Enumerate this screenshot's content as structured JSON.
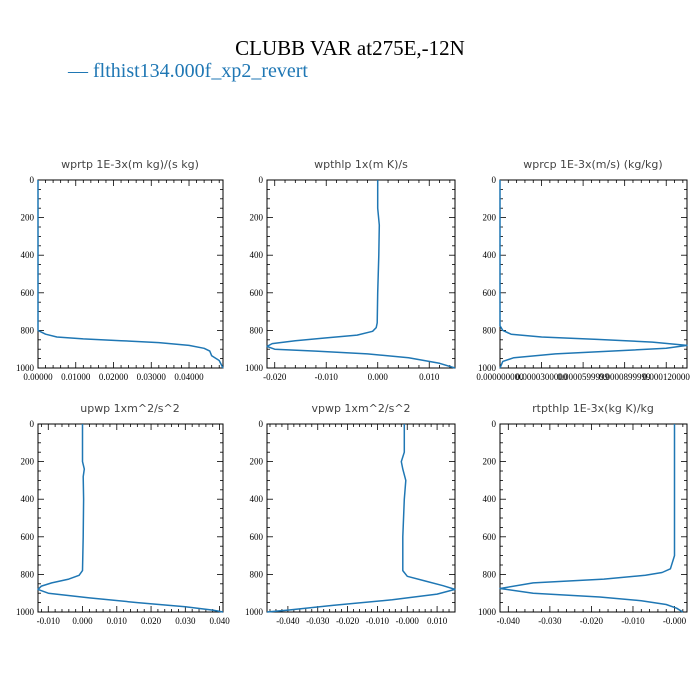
{
  "title": "CLUBB VAR at275E,-12N",
  "legend": {
    "dash": "—",
    "label": "flthist134.000f_xp2_revert",
    "color": "#1f77b4"
  },
  "chart_data": [
    {
      "type": "line",
      "title": "wprtp  1E-3x(m kg)/(s kg)",
      "xlim": [
        0,
        0.049
      ],
      "ylim": [
        1000,
        0
      ],
      "xticks": [
        0,
        0.01,
        0.02,
        0.03,
        0.04
      ],
      "xtick_labels": [
        "0.00000",
        "0.01000",
        "0.02000",
        "0.03000",
        "0.04000"
      ],
      "yticks": [
        0,
        200,
        400,
        600,
        800,
        1000
      ],
      "series": [
        {
          "color": "#1f77b4",
          "x": [
            0,
            0,
            0,
            0.002,
            0.005,
            0.012,
            0.022,
            0.032,
            0.04,
            0.044,
            0.0455,
            0.046,
            0.048,
            0.049
          ],
          "y": [
            0,
            780,
            800,
            820,
            835,
            845,
            855,
            865,
            880,
            895,
            910,
            935,
            960,
            1000
          ]
        }
      ]
    },
    {
      "type": "line",
      "title": "wpthlp  1x(m K)/s",
      "xlim": [
        -0.0215,
        0.015
      ],
      "ylim": [
        1000,
        0
      ],
      "xticks": [
        -0.02,
        -0.01,
        0,
        0.01
      ],
      "xtick_labels": [
        "-0.020",
        "-0.010",
        "0.000",
        "0.010"
      ],
      "yticks": [
        0,
        200,
        400,
        600,
        800,
        1000
      ],
      "series": [
        {
          "color": "#1f77b4",
          "x": [
            0,
            0,
            0.0003,
            0.0002,
            0,
            -0.0001,
            -0.0003,
            -0.001,
            -0.004,
            -0.01,
            -0.016,
            -0.0205,
            -0.0215,
            -0.02,
            -0.012,
            -0.002,
            0.006,
            0.012,
            0.015
          ],
          "y": [
            0,
            150,
            240,
            400,
            600,
            760,
            785,
            805,
            825,
            840,
            855,
            870,
            885,
            900,
            910,
            925,
            945,
            975,
            1000
          ]
        }
      ]
    },
    {
      "type": "line",
      "title": "wprcp  1E-3x(m/s) (kg/kg)",
      "xlim": [
        0,
        0.000135
      ],
      "ylim": [
        1000,
        0
      ],
      "xticks": [
        0,
        3e-05,
        6e-05,
        9e-05,
        0.00012
      ],
      "xtick_labels": [
        "0.000000000",
        "0.0000300000",
        "0.0000599999",
        "0.0000899999",
        "0.000120000"
      ],
      "yticks": [
        0,
        200,
        400,
        600,
        800,
        1000
      ],
      "series": [
        {
          "color": "#1f77b4",
          "x": [
            0,
            0,
            2e-06,
            8e-06,
            3e-05,
            7e-05,
            0.00011,
            0.000135,
            0.00012,
            8e-05,
            4e-05,
            1e-05,
            2e-06,
            0
          ],
          "y": [
            0,
            775,
            800,
            820,
            835,
            848,
            862,
            880,
            895,
            910,
            925,
            945,
            965,
            1000
          ]
        }
      ]
    },
    {
      "type": "line",
      "title": "upwp  1xm^2/s^2",
      "xlim": [
        -0.013,
        0.041
      ],
      "ylim": [
        1000,
        0
      ],
      "xticks": [
        -0.01,
        0,
        0.01,
        0.02,
        0.03,
        0.04
      ],
      "xtick_labels": [
        "-0.010",
        "0.000",
        "0.010",
        "0.020",
        "0.030",
        "0.040"
      ],
      "yticks": [
        0,
        200,
        400,
        600,
        800,
        1000
      ],
      "series": [
        {
          "color": "#1f77b4",
          "x": [
            0,
            0,
            0.0005,
            0.0002,
            0.0003,
            0.0002,
            0,
            -0.001,
            -0.004,
            -0.009,
            -0.012,
            -0.013,
            -0.01,
            0.002,
            0.016,
            0.03,
            0.038,
            0.041
          ],
          "y": [
            0,
            200,
            240,
            280,
            400,
            600,
            780,
            805,
            825,
            845,
            862,
            880,
            900,
            925,
            950,
            972,
            990,
            1000
          ]
        }
      ]
    },
    {
      "type": "line",
      "title": "vpwp  1xm^2/s^2",
      "xlim": [
        -0.047,
        0.016
      ],
      "ylim": [
        1000,
        0
      ],
      "xticks": [
        -0.04,
        -0.03,
        -0.02,
        -0.01,
        0,
        0.01
      ],
      "xtick_labels": [
        "-0.040",
        "-0.030",
        "-0.020",
        "-0.010",
        "-0.000",
        "0.010"
      ],
      "yticks": [
        0,
        200,
        400,
        600,
        800,
        1000
      ],
      "series": [
        {
          "color": "#1f77b4",
          "x": [
            -0.001,
            -0.001,
            -0.002,
            -0.0015,
            -0.0005,
            -0.001,
            -0.0015,
            -0.0015,
            0,
            0.006,
            0.012,
            0.016,
            0.01,
            -0.005,
            -0.025,
            -0.04,
            -0.047
          ],
          "y": [
            0,
            150,
            200,
            240,
            300,
            400,
            600,
            780,
            810,
            835,
            860,
            880,
            905,
            935,
            965,
            990,
            1000
          ]
        }
      ]
    },
    {
      "type": "line",
      "title": "rtpthlp  1E-3x(kg K)/kg",
      "xlim": [
        -0.042,
        0.003
      ],
      "ylim": [
        1000,
        0
      ],
      "xticks": [
        -0.04,
        -0.03,
        -0.02,
        -0.01,
        0
      ],
      "xtick_labels": [
        "-0.040",
        "-0.030",
        "-0.020",
        "-0.010",
        "-0.000"
      ],
      "yticks": [
        0,
        200,
        400,
        600,
        800,
        1000
      ],
      "series": [
        {
          "color": "#1f77b4",
          "x": [
            0,
            0,
            -0.001,
            -0.003,
            -0.007,
            -0.017,
            -0.034,
            -0.042,
            -0.034,
            -0.018,
            -0.008,
            -0.002,
            0.0005,
            0.002
          ],
          "y": [
            0,
            700,
            770,
            790,
            805,
            825,
            845,
            875,
            900,
            920,
            940,
            960,
            980,
            1000
          ]
        }
      ]
    }
  ]
}
